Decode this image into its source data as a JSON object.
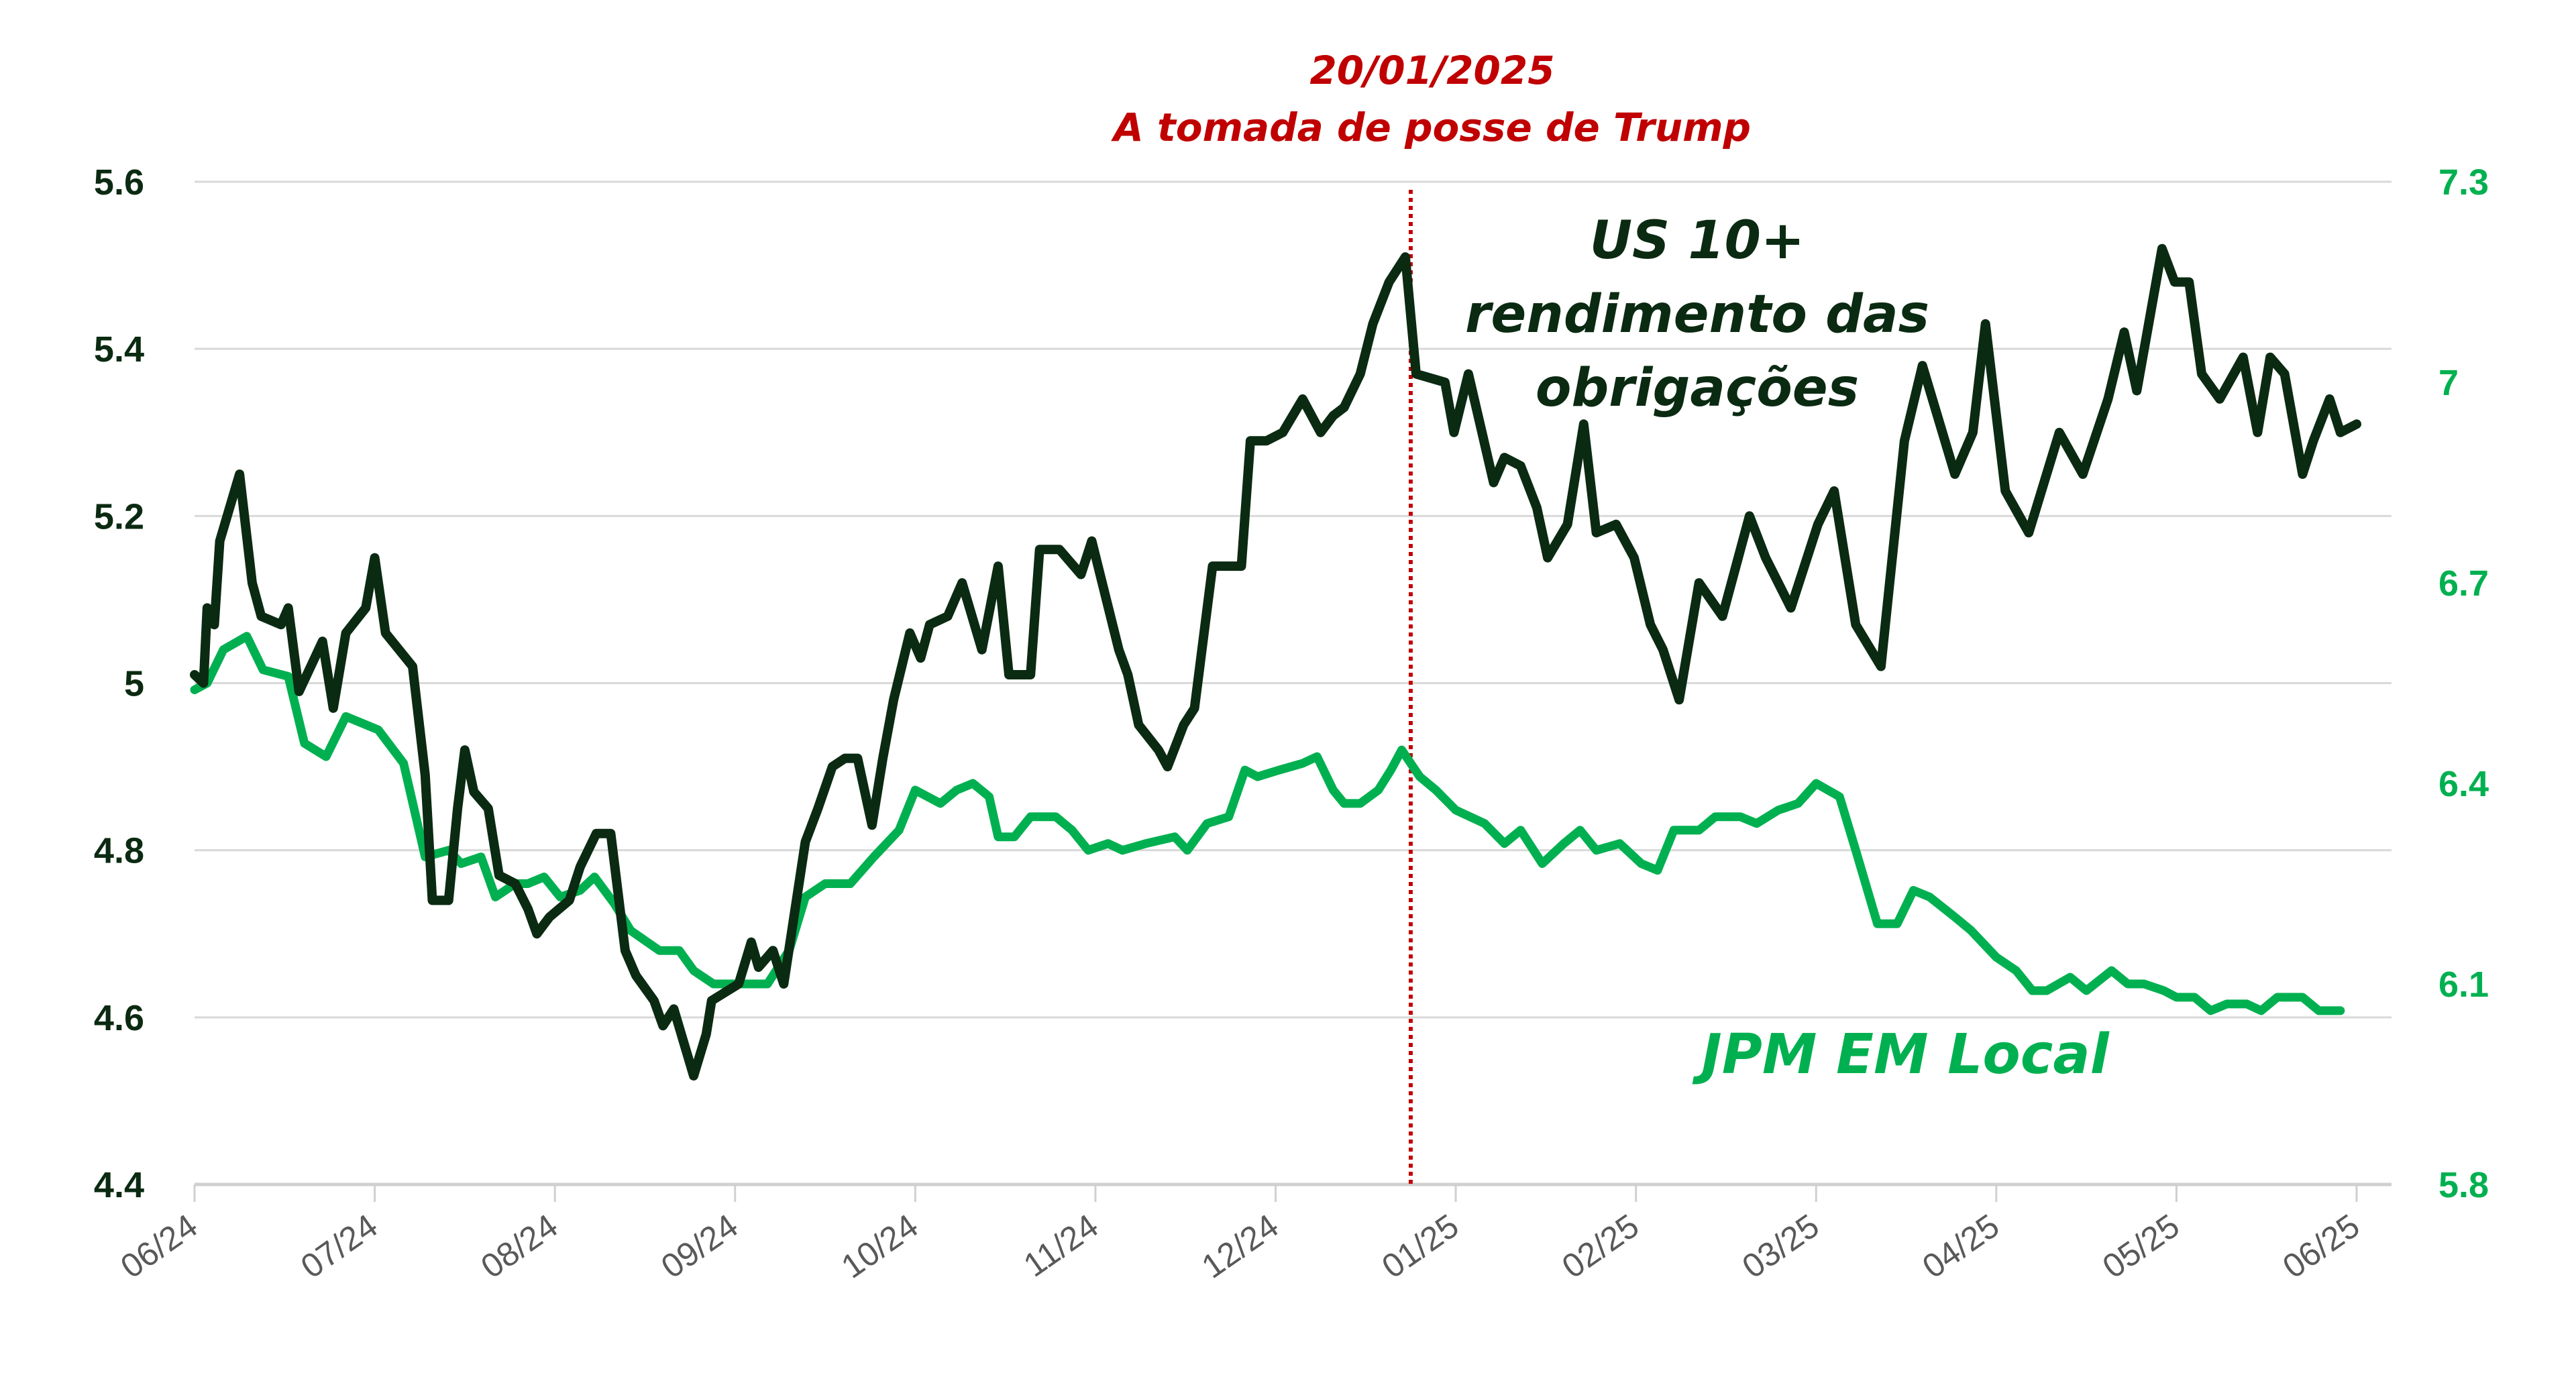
{
  "chart_data": {
    "type": "line",
    "title": "",
    "x_unit": "months since 06/24",
    "x_tick_labels": [
      "06/24",
      "07/24",
      "08/24",
      "09/24",
      "10/24",
      "11/24",
      "12/24",
      "01/25",
      "02/25",
      "03/25",
      "04/25",
      "05/25",
      "06/25"
    ],
    "xlim": [
      0,
      12
    ],
    "y_left": {
      "ticks": [
        "5.6",
        "5.4",
        "5.2",
        "5",
        "4.8",
        "4.6",
        "4.4"
      ],
      "ylim": [
        4.4,
        5.6
      ],
      "color": "#0b2a12"
    },
    "y_right": {
      "ticks": [
        "7.3",
        "7",
        "6.7",
        "6.4",
        "6.1",
        "5.8"
      ],
      "ylim": [
        5.8,
        7.3
      ],
      "color": "#00b050"
    },
    "grid": true,
    "annotation": {
      "date": "20/01/2025",
      "event": "A tomada de posse de Trump",
      "x": 6.75,
      "color": "#c00000"
    },
    "series": [
      {
        "name": "US 10+ rendimento das obrigações",
        "label_lines": [
          "US 10+",
          "rendimento das",
          "obrigações"
        ],
        "axis": "left",
        "color": "#0b2a12",
        "points": [
          [
            0,
            5.01
          ],
          [
            0.05,
            5.0
          ],
          [
            0.07,
            5.09
          ],
          [
            0.11,
            5.07
          ],
          [
            0.14,
            5.17
          ],
          [
            0.25,
            5.25
          ],
          [
            0.32,
            5.12
          ],
          [
            0.37,
            5.08
          ],
          [
            0.48,
            5.07
          ],
          [
            0.52,
            5.09
          ],
          [
            0.58,
            4.99
          ],
          [
            0.71,
            5.05
          ],
          [
            0.77,
            4.97
          ],
          [
            0.84,
            5.06
          ],
          [
            0.95,
            5.09
          ],
          [
            1.0,
            5.15
          ],
          [
            1.06,
            5.06
          ],
          [
            1.21,
            5.02
          ],
          [
            1.28,
            4.89
          ],
          [
            1.32,
            4.74
          ],
          [
            1.41,
            4.74
          ],
          [
            1.46,
            4.85
          ],
          [
            1.5,
            4.92
          ],
          [
            1.55,
            4.87
          ],
          [
            1.63,
            4.85
          ],
          [
            1.69,
            4.77
          ],
          [
            1.78,
            4.76
          ],
          [
            1.85,
            4.73
          ],
          [
            1.9,
            4.7
          ],
          [
            1.97,
            4.72
          ],
          [
            2.08,
            4.74
          ],
          [
            2.14,
            4.78
          ],
          [
            2.23,
            4.82
          ],
          [
            2.31,
            4.82
          ],
          [
            2.39,
            4.68
          ],
          [
            2.45,
            4.65
          ],
          [
            2.55,
            4.62
          ],
          [
            2.6,
            4.59
          ],
          [
            2.66,
            4.61
          ],
          [
            2.77,
            4.53
          ],
          [
            2.84,
            4.58
          ],
          [
            2.87,
            4.62
          ],
          [
            3.02,
            4.64
          ],
          [
            3.09,
            4.69
          ],
          [
            3.13,
            4.66
          ],
          [
            3.21,
            4.68
          ],
          [
            3.27,
            4.64
          ],
          [
            3.39,
            4.81
          ],
          [
            3.46,
            4.85
          ],
          [
            3.54,
            4.9
          ],
          [
            3.61,
            4.91
          ],
          [
            3.68,
            4.91
          ],
          [
            3.76,
            4.83
          ],
          [
            3.82,
            4.91
          ],
          [
            3.88,
            4.98
          ],
          [
            3.97,
            5.06
          ],
          [
            4.03,
            5.03
          ],
          [
            4.08,
            5.07
          ],
          [
            4.18,
            5.08
          ],
          [
            4.26,
            5.12
          ],
          [
            4.37,
            5.04
          ],
          [
            4.46,
            5.14
          ],
          [
            4.52,
            5.01
          ],
          [
            4.64,
            5.01
          ],
          [
            4.69,
            5.16
          ],
          [
            4.8,
            5.16
          ],
          [
            4.92,
            5.13
          ],
          [
            4.98,
            5.17
          ],
          [
            5.13,
            5.04
          ],
          [
            5.18,
            5.01
          ],
          [
            5.24,
            4.95
          ],
          [
            5.35,
            4.92
          ],
          [
            5.4,
            4.9
          ],
          [
            5.49,
            4.95
          ],
          [
            5.55,
            4.97
          ],
          [
            5.65,
            5.14
          ],
          [
            5.81,
            5.14
          ],
          [
            5.86,
            5.29
          ],
          [
            5.95,
            5.29
          ],
          [
            6.04,
            5.3
          ],
          [
            6.15,
            5.34
          ],
          [
            6.25,
            5.3
          ],
          [
            6.32,
            5.32
          ],
          [
            6.38,
            5.33
          ],
          [
            6.47,
            5.37
          ],
          [
            6.54,
            5.43
          ],
          [
            6.63,
            5.48
          ],
          [
            6.72,
            5.51
          ],
          [
            6.78,
            5.37
          ],
          [
            6.94,
            5.36
          ],
          [
            6.99,
            5.3
          ],
          [
            7.07,
            5.37
          ],
          [
            7.21,
            5.24
          ],
          [
            7.27,
            5.27
          ],
          [
            7.36,
            5.26
          ],
          [
            7.45,
            5.21
          ],
          [
            7.51,
            5.15
          ],
          [
            7.62,
            5.19
          ],
          [
            7.71,
            5.31
          ],
          [
            7.78,
            5.18
          ],
          [
            7.89,
            5.19
          ],
          [
            7.99,
            5.15
          ],
          [
            8.08,
            5.07
          ],
          [
            8.15,
            5.04
          ],
          [
            8.24,
            4.98
          ],
          [
            8.35,
            5.12
          ],
          [
            8.48,
            5.08
          ],
          [
            8.63,
            5.2
          ],
          [
            8.72,
            5.15
          ],
          [
            8.86,
            5.09
          ],
          [
            9.01,
            5.19
          ],
          [
            9.1,
            5.23
          ],
          [
            9.22,
            5.07
          ],
          [
            9.36,
            5.02
          ],
          [
            9.49,
            5.29
          ],
          [
            9.59,
            5.38
          ],
          [
            9.77,
            5.25
          ],
          [
            9.87,
            5.3
          ],
          [
            9.94,
            5.43
          ],
          [
            10.05,
            5.23
          ],
          [
            10.18,
            5.18
          ],
          [
            10.35,
            5.3
          ],
          [
            10.48,
            5.25
          ],
          [
            10.62,
            5.34
          ],
          [
            10.71,
            5.42
          ],
          [
            10.78,
            5.35
          ],
          [
            10.92,
            5.52
          ],
          [
            10.99,
            5.48
          ],
          [
            11.07,
            5.48
          ],
          [
            11.14,
            5.37
          ],
          [
            11.24,
            5.34
          ],
          [
            11.37,
            5.39
          ],
          [
            11.45,
            5.3
          ],
          [
            11.52,
            5.39
          ],
          [
            11.6,
            5.37
          ],
          [
            11.7,
            5.25
          ],
          [
            11.76,
            5.29
          ],
          [
            11.85,
            5.34
          ],
          [
            11.91,
            5.3
          ],
          [
            12.0,
            5.31
          ]
        ]
      },
      {
        "name": "JPM EM Local",
        "label_lines": [
          "JPM EM Local"
        ],
        "axis": "right",
        "color": "#00b050",
        "points": [
          [
            0,
            6.54
          ],
          [
            0.07,
            6.55
          ],
          [
            0.16,
            6.6
          ],
          [
            0.29,
            6.62
          ],
          [
            0.38,
            6.57
          ],
          [
            0.52,
            6.56
          ],
          [
            0.61,
            6.46
          ],
          [
            0.73,
            6.44
          ],
          [
            0.84,
            6.5
          ],
          [
            1.02,
            6.48
          ],
          [
            1.16,
            6.43
          ],
          [
            1.28,
            6.29
          ],
          [
            1.41,
            6.3
          ],
          [
            1.48,
            6.28
          ],
          [
            1.59,
            6.29
          ],
          [
            1.67,
            6.23
          ],
          [
            1.78,
            6.25
          ],
          [
            1.85,
            6.25
          ],
          [
            1.94,
            6.26
          ],
          [
            2.03,
            6.23
          ],
          [
            2.14,
            6.24
          ],
          [
            2.22,
            6.26
          ],
          [
            2.33,
            6.22
          ],
          [
            2.42,
            6.18
          ],
          [
            2.58,
            6.15
          ],
          [
            2.69,
            6.15
          ],
          [
            2.77,
            6.12
          ],
          [
            2.88,
            6.1
          ],
          [
            3.02,
            6.1
          ],
          [
            3.18,
            6.1
          ],
          [
            3.3,
            6.15
          ],
          [
            3.39,
            6.23
          ],
          [
            3.5,
            6.25
          ],
          [
            3.64,
            6.25
          ],
          [
            3.77,
            6.29
          ],
          [
            3.91,
            6.33
          ],
          [
            4.0,
            6.39
          ],
          [
            4.14,
            6.37
          ],
          [
            4.23,
            6.39
          ],
          [
            4.32,
            6.4
          ],
          [
            4.41,
            6.38
          ],
          [
            4.46,
            6.32
          ],
          [
            4.55,
            6.32
          ],
          [
            4.64,
            6.35
          ],
          [
            4.78,
            6.35
          ],
          [
            4.87,
            6.33
          ],
          [
            4.96,
            6.3
          ],
          [
            5.07,
            6.31
          ],
          [
            5.15,
            6.3
          ],
          [
            5.28,
            6.31
          ],
          [
            5.44,
            6.32
          ],
          [
            5.51,
            6.3
          ],
          [
            5.62,
            6.34
          ],
          [
            5.74,
            6.35
          ],
          [
            5.83,
            6.42
          ],
          [
            5.9,
            6.41
          ],
          [
            6.02,
            6.42
          ],
          [
            6.15,
            6.43
          ],
          [
            6.23,
            6.44
          ],
          [
            6.32,
            6.39
          ],
          [
            6.38,
            6.37
          ],
          [
            6.47,
            6.37
          ],
          [
            6.57,
            6.39
          ],
          [
            6.64,
            6.42
          ],
          [
            6.7,
            6.45
          ],
          [
            6.8,
            6.41
          ],
          [
            6.89,
            6.39
          ],
          [
            7.0,
            6.36
          ],
          [
            7.16,
            6.34
          ],
          [
            7.27,
            6.31
          ],
          [
            7.36,
            6.33
          ],
          [
            7.48,
            6.28
          ],
          [
            7.6,
            6.31
          ],
          [
            7.69,
            6.33
          ],
          [
            7.78,
            6.3
          ],
          [
            7.91,
            6.31
          ],
          [
            8.03,
            6.28
          ],
          [
            8.12,
            6.27
          ],
          [
            8.21,
            6.33
          ],
          [
            8.35,
            6.33
          ],
          [
            8.44,
            6.35
          ],
          [
            8.58,
            6.35
          ],
          [
            8.67,
            6.34
          ],
          [
            8.79,
            6.36
          ],
          [
            8.9,
            6.37
          ],
          [
            9.0,
            6.4
          ],
          [
            9.13,
            6.38
          ],
          [
            9.22,
            6.3
          ],
          [
            9.34,
            6.19
          ],
          [
            9.45,
            6.19
          ],
          [
            9.54,
            6.24
          ],
          [
            9.63,
            6.23
          ],
          [
            9.77,
            6.2
          ],
          [
            9.86,
            6.18
          ],
          [
            10.0,
            6.14
          ],
          [
            10.11,
            6.12
          ],
          [
            10.2,
            6.09
          ],
          [
            10.28,
            6.09
          ],
          [
            10.41,
            6.11
          ],
          [
            10.5,
            6.09
          ],
          [
            10.64,
            6.12
          ],
          [
            10.73,
            6.1
          ],
          [
            10.82,
            6.1
          ],
          [
            10.93,
            6.09
          ],
          [
            11.0,
            6.08
          ],
          [
            11.1,
            6.08
          ],
          [
            11.19,
            6.06
          ],
          [
            11.28,
            6.07
          ],
          [
            11.39,
            6.07
          ],
          [
            11.47,
            6.06
          ],
          [
            11.56,
            6.08
          ],
          [
            11.7,
            6.08
          ],
          [
            11.79,
            6.06
          ],
          [
            11.91,
            6.06
          ]
        ]
      }
    ]
  }
}
